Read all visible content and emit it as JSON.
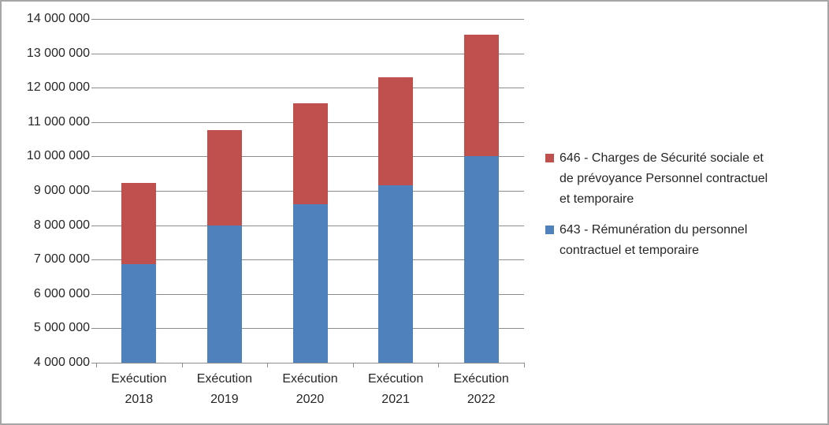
{
  "chart_data": {
    "type": "bar",
    "stacked": true,
    "title": "",
    "xlabel": "",
    "ylabel": "",
    "categories": [
      "Exécution 2018",
      "Exécution 2019",
      "Exécution 2020",
      "Exécution 2021",
      "Exécution 2022"
    ],
    "series": [
      {
        "name": "643 - Rémunération du personnel contractuel et temporaire",
        "color": "#4F81BD",
        "values": [
          6870000,
          8000000,
          8600000,
          9170000,
          10000000
        ]
      },
      {
        "name": "646 - Charges de Sécurité sociale et de prévoyance Personnel contractuel et temporaire",
        "color": "#C0504D",
        "values": [
          2370000,
          2770000,
          2940000,
          3140000,
          3550000
        ]
      }
    ],
    "stack_totals": [
      9240000,
      10770000,
      11540000,
      12310000,
      13550000
    ],
    "ylim": [
      4000000,
      14000000
    ],
    "ytick_step": 1000000,
    "ytick_labels": [
      "14 000 000",
      "13 000 000",
      "12 000 000",
      "11 000 000",
      "10 000 000",
      "9 000 000",
      "8 000 000",
      "7 000 000",
      "6 000 000",
      "5 000 000",
      "4 000 000"
    ],
    "grid": true,
    "legend_position": "right"
  },
  "legend": {
    "entries": [
      {
        "series": "646",
        "color": "#C0504D",
        "lines": [
          "646 - Charges de Sécurité sociale et",
          "de prévoyance Personnel contractuel",
          "et temporaire"
        ]
      },
      {
        "series": "643",
        "color": "#4F81BD",
        "lines": [
          "643 - Rémunération du personnel",
          "contractuel et temporaire"
        ]
      }
    ]
  },
  "colors": {
    "background": "#FFFFFF",
    "gridline": "#8C8C8C",
    "axis": "#8C8C8C",
    "text": "#262626",
    "frame_border": "#A6A6A6"
  }
}
